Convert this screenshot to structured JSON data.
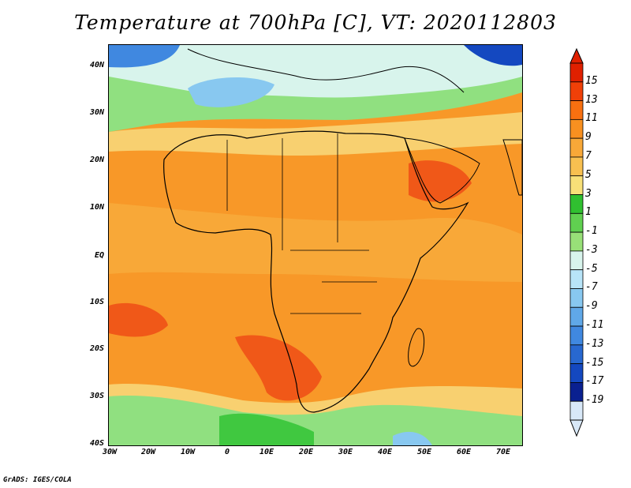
{
  "title": "Temperature at 700hPa [C], VT: 2020112803",
  "footer": "GrADS: IGES/COLA",
  "lat_labels": [
    "40N",
    "30N",
    "20N",
    "10N",
    "EQ",
    "10S",
    "20S",
    "30S",
    "40S"
  ],
  "lon_labels": [
    "30W",
    "20W",
    "10W",
    "0",
    "10E",
    "20E",
    "30E",
    "40E",
    "50E",
    "60E",
    "70E"
  ],
  "colorbar": {
    "labels": [
      "15",
      "13",
      "11",
      "9",
      "7",
      "5",
      "3",
      "1",
      "-1",
      "-3",
      "-5",
      "-7",
      "-9",
      "-11",
      "-13",
      "-15",
      "-17",
      "-19"
    ],
    "colors": [
      "#e02000",
      "#f04008",
      "#f87010",
      "#f89020",
      "#f8a838",
      "#f8c050",
      "#f8e078",
      "#30c030",
      "#60d050",
      "#98e078",
      "#d8f4ec",
      "#b8e4f8",
      "#88c8f0",
      "#60a8e8",
      "#4088e0",
      "#2868d0",
      "#1448c0",
      "#0a2090",
      "#d8e8f8"
    ]
  },
  "colors": {
    "warm_core": "#f05818",
    "orange": "#f89828",
    "light_orange": "#f8b048",
    "yellow": "#f8d070",
    "green": "#40c840",
    "light_green": "#90e080",
    "light_blue": "#b8e0f8",
    "blue": "#3c82dc"
  }
}
